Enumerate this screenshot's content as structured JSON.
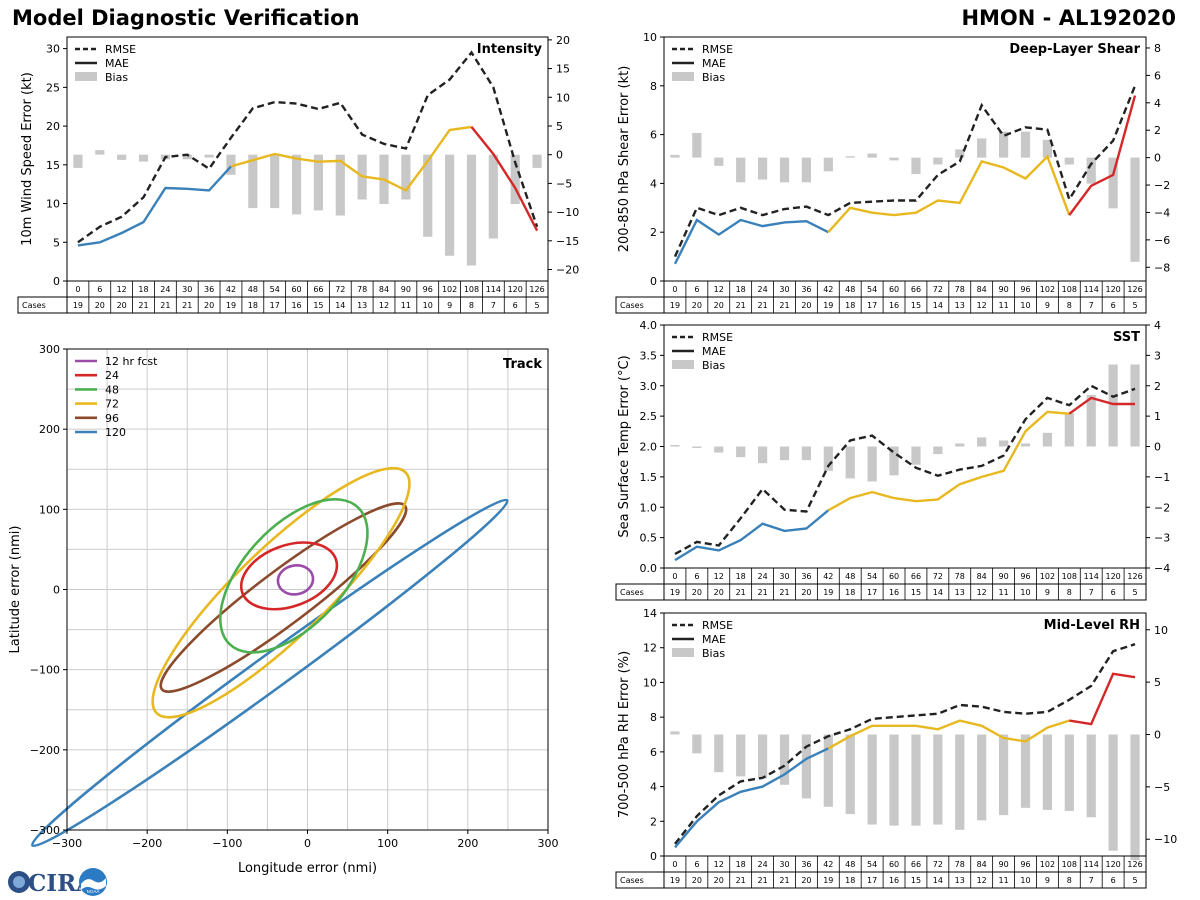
{
  "header": {
    "title_left": "Model Diagnostic Verification",
    "title_right": "HMON - AL192020"
  },
  "logo": {
    "text": "CIRA",
    "mark_text": "NOAA"
  },
  "legend_labels": {
    "rmse": "RMSE",
    "mae": "MAE",
    "bias": "Bias"
  },
  "cases_label": "Cases",
  "colors": {
    "rmse": "#222222",
    "bias": "#c8c8c8",
    "mae_early": "#3a80b9",
    "mae_mid": "#e8b820",
    "mae_late": "#d62728"
  },
  "chart_data": [
    {
      "id": "intensity",
      "type": "line",
      "title": "Intensity",
      "ylabel": "10m Wind Speed Error (kt)",
      "ylim": [
        0,
        31.5
      ],
      "yticks": [
        0,
        5,
        10,
        15,
        20,
        25,
        30
      ],
      "y2lim": [
        -22,
        20.5
      ],
      "y2ticks": [
        -20,
        -15,
        -10,
        -5,
        0,
        5,
        10,
        15,
        20
      ],
      "hours": [
        0,
        6,
        12,
        18,
        24,
        30,
        36,
        42,
        48,
        54,
        60,
        66,
        72,
        78,
        84,
        90,
        96,
        102,
        108,
        114,
        120,
        126
      ],
      "cases": [
        19,
        20,
        20,
        21,
        21,
        21,
        20,
        19,
        18,
        17,
        16,
        15,
        14,
        13,
        12,
        11,
        10,
        9,
        8,
        7,
        6,
        5
      ],
      "rmse": [
        5.0,
        7.0,
        8.3,
        10.8,
        16.0,
        16.3,
        14.5,
        18.5,
        22.3,
        23.1,
        22.9,
        22.2,
        23.0,
        18.9,
        17.7,
        17.1,
        24.0,
        26.0,
        29.5,
        25.0,
        15.3,
        7.0
      ],
      "mae": [
        4.6,
        5.0,
        6.2,
        7.6,
        12.0,
        11.9,
        11.7,
        14.8,
        15.6,
        16.4,
        15.8,
        15.4,
        15.5,
        13.5,
        13.1,
        11.7,
        15.5,
        19.5,
        19.9,
        16.4,
        12.0,
        6.5
      ],
      "bias": [
        -2.3,
        0.8,
        -0.9,
        -1.2,
        -0.8,
        -0.8,
        -0.5,
        -3.5,
        -9.3,
        -9.3,
        -10.4,
        -9.7,
        -10.6,
        -7.8,
        -8.6,
        -7.8,
        -14.3,
        -17.6,
        -19.3,
        -14.6,
        -8.6,
        -2.3
      ],
      "mae_color_segments": [
        [
          0,
          7,
          "mae_early"
        ],
        [
          7,
          18,
          "mae_mid"
        ],
        [
          18,
          21,
          "mae_late"
        ]
      ]
    },
    {
      "id": "shear",
      "type": "line",
      "title": "Deep-Layer Shear",
      "ylabel": "200-850 hPa Shear Error (kt)",
      "ylim": [
        0,
        10
      ],
      "yticks": [
        0,
        2,
        4,
        6,
        8,
        10
      ],
      "y2lim": [
        -9.0,
        8.8
      ],
      "y2ticks": [
        -8,
        -6,
        -4,
        -2,
        0,
        2,
        4,
        6,
        8
      ],
      "hours": [
        0,
        6,
        12,
        18,
        24,
        30,
        36,
        42,
        48,
        54,
        60,
        66,
        72,
        78,
        84,
        90,
        96,
        102,
        108,
        114,
        120,
        126
      ],
      "cases": [
        19,
        20,
        20,
        21,
        21,
        21,
        20,
        19,
        18,
        17,
        16,
        15,
        14,
        13,
        12,
        11,
        10,
        9,
        8,
        7,
        6,
        5
      ],
      "rmse": [
        1.0,
        3.0,
        2.7,
        3.0,
        2.7,
        2.95,
        3.05,
        2.7,
        3.2,
        3.25,
        3.3,
        3.3,
        4.35,
        4.9,
        7.2,
        5.95,
        6.3,
        6.2,
        3.35,
        4.8,
        5.75,
        8.0
      ],
      "mae": [
        0.7,
        2.5,
        1.9,
        2.5,
        2.25,
        2.4,
        2.45,
        2.0,
        3.0,
        2.8,
        2.7,
        2.8,
        3.3,
        3.2,
        4.9,
        4.65,
        4.2,
        5.1,
        2.7,
        3.9,
        4.35,
        7.6
      ],
      "bias": [
        0.2,
        1.8,
        -0.6,
        -1.8,
        -1.6,
        -1.8,
        -1.8,
        -1.0,
        0.1,
        0.3,
        -0.2,
        -1.2,
        -0.5,
        0.6,
        1.4,
        1.9,
        1.9,
        1.3,
        -0.5,
        -1.9,
        -3.7,
        -7.6
      ],
      "mae_color_segments": [
        [
          0,
          7,
          "mae_early"
        ],
        [
          7,
          18,
          "mae_mid"
        ],
        [
          18,
          21,
          "mae_late"
        ]
      ]
    },
    {
      "id": "sst",
      "type": "line",
      "title": "SST",
      "ylabel": "Sea Surface Temp Error (°C)",
      "ylim": [
        0,
        4.0
      ],
      "yticks": [
        0.0,
        0.5,
        1.0,
        1.5,
        2.0,
        2.5,
        3.0,
        3.5,
        4.0
      ],
      "yticklabels": [
        "0.0",
        "0.5",
        "1.0",
        "1.5",
        "2.0",
        "2.5",
        "3.0",
        "3.5",
        "4.0"
      ],
      "y2lim": [
        -4,
        4
      ],
      "y2ticks": [
        -4,
        -3,
        -2,
        -1,
        0,
        1,
        2,
        3,
        4
      ],
      "hours": [
        0,
        6,
        12,
        18,
        24,
        30,
        36,
        42,
        48,
        54,
        60,
        66,
        72,
        78,
        84,
        90,
        96,
        102,
        108,
        114,
        120,
        126
      ],
      "cases": [
        19,
        20,
        20,
        21,
        21,
        21,
        20,
        19,
        18,
        17,
        16,
        15,
        14,
        13,
        12,
        11,
        10,
        9,
        8,
        7,
        6,
        5
      ],
      "rmse": [
        0.23,
        0.43,
        0.37,
        0.82,
        1.3,
        0.96,
        0.93,
        1.68,
        2.1,
        2.18,
        1.9,
        1.65,
        1.52,
        1.62,
        1.68,
        1.85,
        2.45,
        2.8,
        2.68,
        3.0,
        2.82,
        2.95
      ],
      "mae": [
        0.13,
        0.35,
        0.29,
        0.46,
        0.73,
        0.61,
        0.65,
        0.95,
        1.15,
        1.25,
        1.15,
        1.1,
        1.13,
        1.38,
        1.5,
        1.6,
        2.25,
        2.57,
        2.54,
        2.8,
        2.7,
        2.7
      ],
      "bias": [
        0.05,
        -0.05,
        -0.2,
        -0.35,
        -0.55,
        -0.45,
        -0.45,
        -0.8,
        -1.05,
        -1.15,
        -0.95,
        -0.6,
        -0.25,
        0.1,
        0.3,
        0.2,
        0.1,
        0.45,
        1.1,
        1.7,
        2.7,
        2.7
      ],
      "mae_color_segments": [
        [
          0,
          7,
          "mae_early"
        ],
        [
          7,
          18,
          "mae_mid"
        ],
        [
          18,
          21,
          "mae_late"
        ]
      ]
    },
    {
      "id": "rh",
      "type": "line",
      "title": "Mid-Level RH",
      "ylabel": "700-500 hPa RH Error (%)",
      "ylim": [
        0,
        14
      ],
      "yticks": [
        0,
        2,
        4,
        6,
        8,
        10,
        12,
        14
      ],
      "y2lim": [
        -11.6,
        11.6
      ],
      "y2ticks": [
        -10,
        -5,
        0,
        5,
        10
      ],
      "hours": [
        0,
        6,
        12,
        18,
        24,
        30,
        36,
        42,
        48,
        54,
        60,
        66,
        72,
        78,
        84,
        90,
        96,
        102,
        108,
        114,
        120,
        126
      ],
      "cases": [
        19,
        20,
        20,
        21,
        21,
        21,
        20,
        19,
        18,
        17,
        16,
        15,
        14,
        13,
        12,
        11,
        10,
        9,
        8,
        7,
        6,
        5
      ],
      "rmse": [
        0.7,
        2.3,
        3.5,
        4.3,
        4.5,
        5.2,
        6.3,
        6.9,
        7.3,
        7.9,
        8.0,
        8.1,
        8.2,
        8.7,
        8.6,
        8.3,
        8.2,
        8.3,
        9.0,
        9.8,
        11.8,
        12.2
      ],
      "mae": [
        0.5,
        2.0,
        3.1,
        3.7,
        4.0,
        4.7,
        5.6,
        6.2,
        6.9,
        7.5,
        7.5,
        7.5,
        7.3,
        7.8,
        7.5,
        6.8,
        6.6,
        7.4,
        7.8,
        7.6,
        10.5,
        10.3
      ],
      "bias": [
        0.3,
        -1.8,
        -3.6,
        -4.0,
        -4.2,
        -4.8,
        -6.1,
        -6.9,
        -7.6,
        -8.6,
        -8.7,
        -8.7,
        -8.6,
        -9.1,
        -8.2,
        -7.7,
        -7.0,
        -7.2,
        -7.3,
        -7.9,
        -11.1,
        -12.0
      ],
      "mae_color_segments": [
        [
          0,
          7,
          "mae_early"
        ],
        [
          7,
          18,
          "mae_mid"
        ],
        [
          18,
          21,
          "mae_late"
        ]
      ]
    },
    {
      "id": "track",
      "type": "ellipse",
      "title": "Track",
      "xlabel": "Longitude error (nmi)",
      "ylabel": "Latitude error (nmi)",
      "xlim": [
        -300,
        300
      ],
      "ylim": [
        -300,
        300
      ],
      "ticks": [
        -300,
        -200,
        -100,
        0,
        100,
        200,
        300
      ],
      "grid_step": 50,
      "legend_first_label": "12 hr fcst",
      "ellipses": [
        {
          "label": "12 hr fcst",
          "color": "#9a4ca8",
          "cx": -15,
          "cy": 12,
          "a": 22,
          "b": 18,
          "angle": 10
        },
        {
          "label": "24",
          "color": "#d62728",
          "cx": -23,
          "cy": 17,
          "a": 62,
          "b": 38,
          "angle": 20
        },
        {
          "label": "48",
          "color": "#4caf50",
          "cx": -17,
          "cy": 17,
          "a": 117,
          "b": 62,
          "angle": 47
        },
        {
          "label": "72",
          "color": "#e8b820",
          "cx": -33,
          "cy": -4,
          "a": 216,
          "b": 56,
          "angle": 44
        },
        {
          "label": "96",
          "color": "#8b4a2b",
          "cx": -30,
          "cy": -10,
          "a": 190,
          "b": 33,
          "angle": 37
        },
        {
          "label": "120",
          "color": "#3a80b9",
          "cx": -47,
          "cy": -104,
          "a": 366,
          "b": 21,
          "angle": 36
        }
      ]
    }
  ]
}
